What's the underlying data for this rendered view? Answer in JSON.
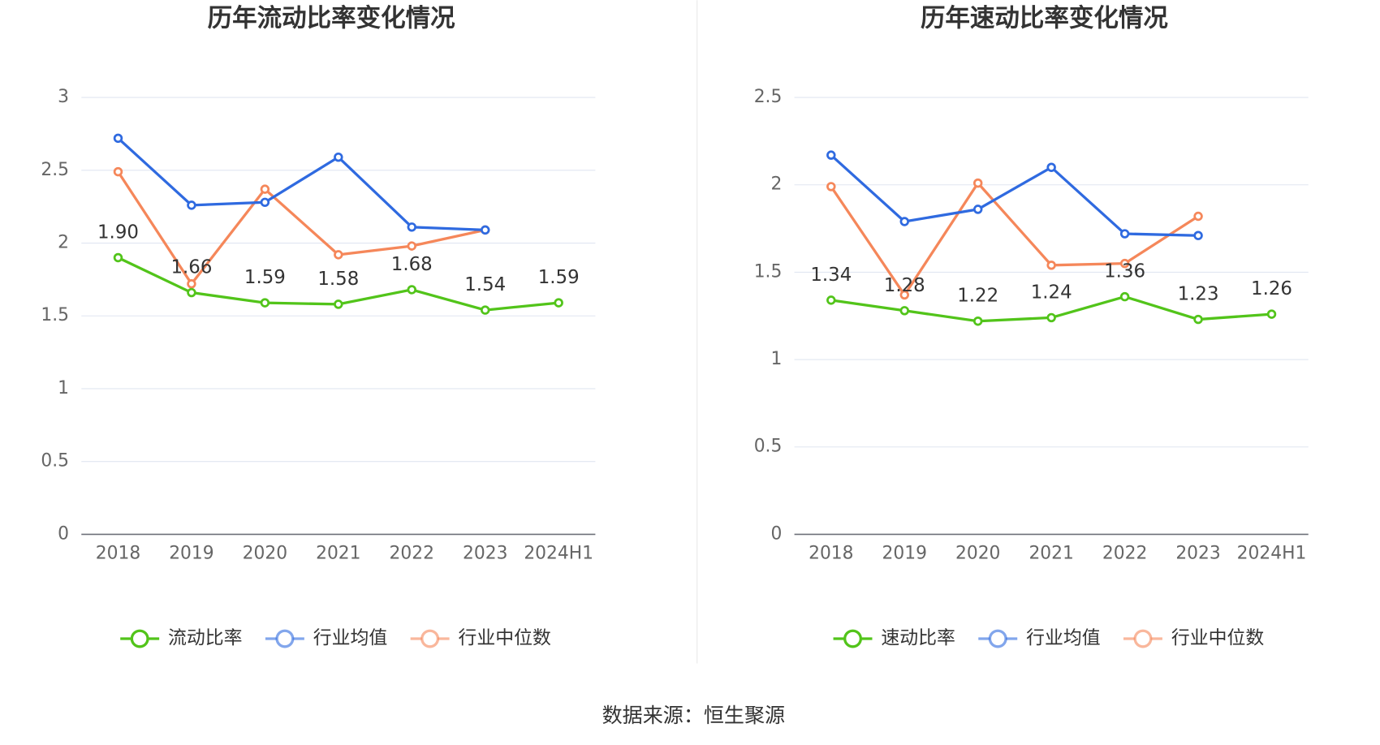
{
  "chart_data": [
    {
      "type": "line",
      "title": "历年流动比率变化情况",
      "categories": [
        "2018",
        "2019",
        "2020",
        "2021",
        "2022",
        "2023",
        "2024H1"
      ],
      "ylim": [
        0,
        3
      ],
      "yticks": [
        0,
        0.5,
        1,
        1.5,
        2,
        2.5,
        3
      ],
      "grid": true,
      "series": [
        {
          "name": "流动比率",
          "color": "#52c41a",
          "values": [
            1.9,
            1.66,
            1.59,
            1.58,
            1.68,
            1.54,
            1.59
          ],
          "value_labels": [
            "1.90",
            "1.66",
            "1.59",
            "1.58",
            "1.68",
            "1.54",
            "1.59"
          ]
        },
        {
          "name": "行业均值",
          "color": "#2f6ae0",
          "values": [
            2.72,
            2.26,
            2.28,
            2.59,
            2.11,
            2.09,
            null
          ]
        },
        {
          "name": "行业中位数",
          "color": "#f5875a",
          "values": [
            2.49,
            1.72,
            2.37,
            1.92,
            1.98,
            2.09,
            null
          ]
        }
      ]
    },
    {
      "type": "line",
      "title": "历年速动比率变化情况",
      "categories": [
        "2018",
        "2019",
        "2020",
        "2021",
        "2022",
        "2023",
        "2024H1"
      ],
      "ylim": [
        0,
        2.5
      ],
      "yticks": [
        0,
        0.5,
        1,
        1.5,
        2,
        2.5
      ],
      "grid": true,
      "series": [
        {
          "name": "速动比率",
          "color": "#52c41a",
          "values": [
            1.34,
            1.28,
            1.22,
            1.24,
            1.36,
            1.23,
            1.26
          ],
          "value_labels": [
            "1.34",
            "1.28",
            "1.22",
            "1.24",
            "1.36",
            "1.23",
            "1.26"
          ]
        },
        {
          "name": "行业均值",
          "color": "#2f6ae0",
          "values": [
            2.17,
            1.79,
            1.86,
            2.1,
            1.72,
            1.71,
            null
          ]
        },
        {
          "name": "行业中位数",
          "color": "#f5875a",
          "values": [
            1.99,
            1.37,
            2.01,
            1.54,
            1.55,
            1.82,
            null
          ]
        }
      ]
    }
  ],
  "source": "数据来源：恒生聚源"
}
